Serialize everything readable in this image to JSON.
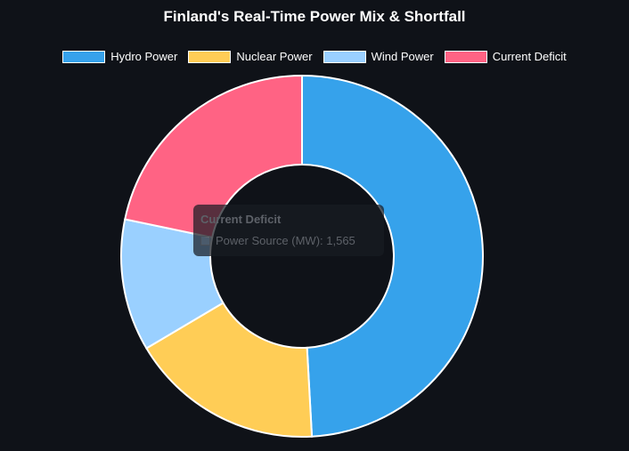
{
  "chart_data": {
    "type": "doughnut",
    "title": "Finland's Real-Time Power Mix & Shortfall",
    "categories": [
      "Hydro Power",
      "Nuclear Power",
      "Wind Power",
      "Current Deficit"
    ],
    "series": [
      {
        "name": "Power Source (MW)",
        "values": [
          3540,
          1250,
          850,
          1565
        ]
      }
    ],
    "colors": [
      "#36a2eb",
      "#ffcd56",
      "#9ad0ff",
      "#ff6384"
    ],
    "border_color": "#ffffff",
    "legend_position": "top",
    "tooltip": {
      "title": "Current Deficit",
      "label": "Power Source (MW): 1,565"
    }
  }
}
